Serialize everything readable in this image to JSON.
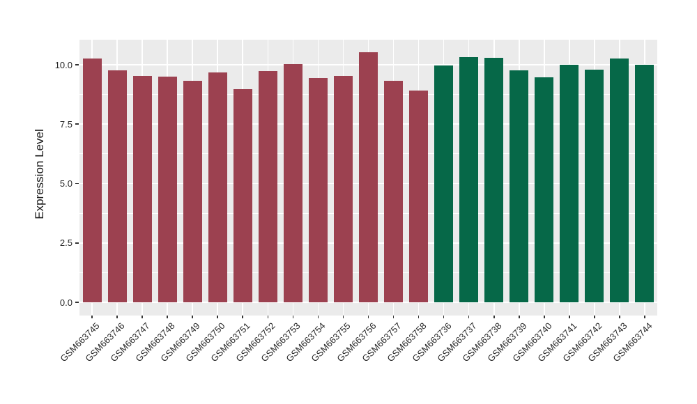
{
  "figure": {
    "background": "#FFFFFF"
  },
  "chart_data": {
    "type": "bar",
    "title": "",
    "xlabel": "",
    "ylabel": "Expression Level",
    "y_axis": {
      "ticks": [
        {
          "value": 0.0,
          "label": "0.0"
        },
        {
          "value": 2.5,
          "label": "2.5"
        },
        {
          "value": 5.0,
          "label": "5.0"
        },
        {
          "value": 7.5,
          "label": "7.5"
        },
        {
          "value": 10.0,
          "label": "10.0"
        }
      ],
      "minor_ticks": [
        1.25,
        3.75,
        6.25,
        8.75
      ],
      "range": [
        -0.55,
        11.05
      ]
    },
    "style": {
      "panel_bg": "#EBEBEB",
      "grid_color": "#FFFFFF",
      "axis_text_color": "#262626"
    },
    "groups": [
      {
        "id": "maroon",
        "color": "#9C4150"
      },
      {
        "id": "green",
        "color": "#066848"
      }
    ],
    "bars": [
      {
        "label": "GSM663745",
        "value": 10.27,
        "group": "maroon"
      },
      {
        "label": "GSM663746",
        "value": 9.78,
        "group": "maroon"
      },
      {
        "label": "GSM663747",
        "value": 9.52,
        "group": "maroon"
      },
      {
        "label": "GSM663748",
        "value": 9.49,
        "group": "maroon"
      },
      {
        "label": "GSM663749",
        "value": 9.33,
        "group": "maroon"
      },
      {
        "label": "GSM663750",
        "value": 9.69,
        "group": "maroon"
      },
      {
        "label": "GSM663751",
        "value": 8.98,
        "group": "maroon"
      },
      {
        "label": "GSM663752",
        "value": 9.74,
        "group": "maroon"
      },
      {
        "label": "GSM663753",
        "value": 10.04,
        "group": "maroon"
      },
      {
        "label": "GSM663754",
        "value": 9.43,
        "group": "maroon"
      },
      {
        "label": "GSM663755",
        "value": 9.53,
        "group": "maroon"
      },
      {
        "label": "GSM663756",
        "value": 10.52,
        "group": "maroon"
      },
      {
        "label": "GSM663757",
        "value": 9.34,
        "group": "maroon"
      },
      {
        "label": "GSM663758",
        "value": 8.93,
        "group": "maroon"
      },
      {
        "label": "GSM663736",
        "value": 9.98,
        "group": "green"
      },
      {
        "label": "GSM663737",
        "value": 10.32,
        "group": "green"
      },
      {
        "label": "GSM663738",
        "value": 10.29,
        "group": "green"
      },
      {
        "label": "GSM663739",
        "value": 9.78,
        "group": "green"
      },
      {
        "label": "GSM663740",
        "value": 9.46,
        "group": "green"
      },
      {
        "label": "GSM663741",
        "value": 10.0,
        "group": "green"
      },
      {
        "label": "GSM663742",
        "value": 9.79,
        "group": "green"
      },
      {
        "label": "GSM663743",
        "value": 10.27,
        "group": "green"
      },
      {
        "label": "GSM663744",
        "value": 10.01,
        "group": "green"
      }
    ]
  }
}
